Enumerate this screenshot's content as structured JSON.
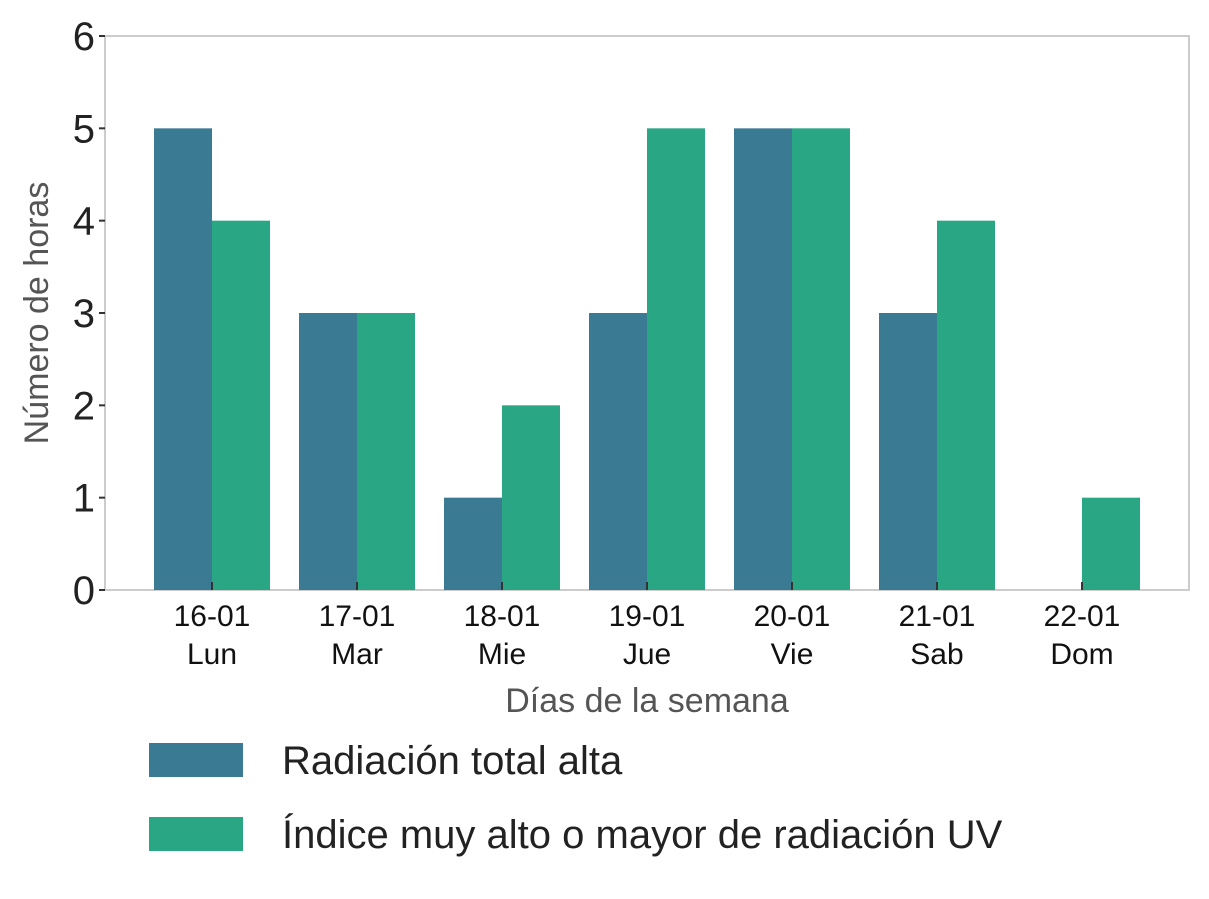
{
  "chart_data": {
    "type": "bar",
    "xlabel": "Días de la semana",
    "ylabel": "Número de horas",
    "ylim": [
      0,
      6
    ],
    "yticks": [
      "0",
      "1",
      "2",
      "3",
      "4",
      "5",
      "6"
    ],
    "categories": [
      [
        "16-01",
        "Lun"
      ],
      [
        "17-01",
        "Mar"
      ],
      [
        "18-01",
        "Mie"
      ],
      [
        "19-01",
        "Jue"
      ],
      [
        "20-01",
        "Vie"
      ],
      [
        "21-01",
        "Sab"
      ],
      [
        "22-01",
        "Dom"
      ]
    ],
    "series": [
      {
        "name": "Radiación total alta",
        "color": "#3a7a93",
        "values": [
          5,
          3,
          1,
          3,
          5,
          3,
          0
        ]
      },
      {
        "name": "Índice muy alto o mayor de radiación UV",
        "color": "#29a785",
        "values": [
          4,
          3,
          2,
          5,
          5,
          4,
          1
        ]
      }
    ],
    "grid": false,
    "legend_position": "bottom"
  }
}
